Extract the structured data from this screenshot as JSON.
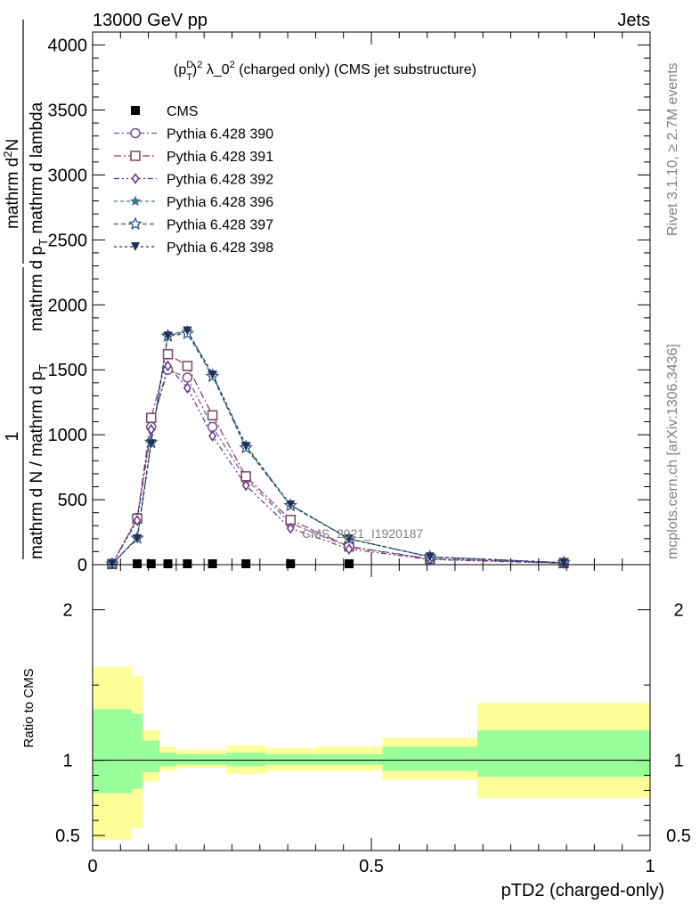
{
  "header": {
    "left": "13000 GeV pp",
    "right": "Jets"
  },
  "side_labels": {
    "rivet": "Rivet 3.1.10, ≥ 2.7M events",
    "mcplots": "mcplots.cern.ch [arXiv:1306.3436]"
  },
  "watermark": "CMS_2021_I1920187",
  "colors": {
    "yellow_band": "#ffff99",
    "green_band": "#99ff99",
    "data": "#000000",
    "p390": "#7a4e84",
    "p391": "#7a4260",
    "p392": "#5a3384",
    "p396": "#3e7a86",
    "p397": "#305a84",
    "p398": "#22305a"
  },
  "chart_data": [
    {
      "type": "line",
      "title": "(p_T^D)^2 λ_0^2 (charged only) (CMS jet substructure)",
      "title_parts": {
        "main": "(p",
        "sup1": "D",
        "sub1": "T",
        "close": ")",
        "sup2": "2",
        "lambda": " λ_0",
        "sup3": "2",
        "rest": " (charged only) (CMS jet substructure)"
      },
      "ylabel_parts": {
        "num": "mathrm d",
        "num_sup": "2",
        "num_n": "N",
        "den_a": "mathrm d p",
        "den_sub": "T",
        "den_b": " mathrm d lambda",
        "lhs_top": "1",
        "lhs_bottom": "mathrm d N / mathrm d p",
        "lhs_sub": "T"
      },
      "xlim": [
        0,
        1
      ],
      "ylim": [
        0,
        4100
      ],
      "yticks": [
        0,
        500,
        1000,
        1500,
        2000,
        2500,
        3000,
        3500,
        4000
      ],
      "ytick_labels": [
        "0",
        "500",
        "1000",
        "1500",
        "2000",
        "2500",
        "3000",
        "3500",
        "4000"
      ],
      "legend_position": "top-left",
      "series": [
        {
          "name": "CMS",
          "marker": "square",
          "x": [
            0.035,
            0.08,
            0.105,
            0.135,
            0.17,
            0.215,
            0.275,
            0.355,
            0.46
          ],
          "y": [
            2,
            2,
            2,
            2,
            2,
            2,
            2,
            2,
            2
          ]
        },
        {
          "name": "Pythia 6.428 390",
          "marker": "circle",
          "x": [
            0.035,
            0.08,
            0.105,
            0.135,
            0.17,
            0.215,
            0.275,
            0.355,
            0.46,
            0.605,
            0.845
          ],
          "y": [
            5,
            360,
            1060,
            1500,
            1440,
            1060,
            660,
            320,
            135,
            45,
            12
          ]
        },
        {
          "name": "Pythia 6.428 391",
          "marker": "square-open",
          "x": [
            0.035,
            0.08,
            0.105,
            0.135,
            0.17,
            0.215,
            0.275,
            0.355,
            0.46,
            0.605,
            0.845
          ],
          "y": [
            5,
            355,
            1130,
            1620,
            1530,
            1150,
            680,
            345,
            140,
            45,
            12
          ]
        },
        {
          "name": "Pythia 6.428 392",
          "marker": "diamond-open",
          "x": [
            0.035,
            0.08,
            0.105,
            0.135,
            0.17,
            0.215,
            0.275,
            0.355,
            0.46,
            0.605,
            0.845
          ],
          "y": [
            5,
            340,
            1040,
            1530,
            1360,
            990,
            610,
            280,
            120,
            40,
            10
          ]
        },
        {
          "name": "Pythia 6.428 396",
          "marker": "star",
          "x": [
            0.035,
            0.08,
            0.105,
            0.135,
            0.17,
            0.215,
            0.275,
            0.355,
            0.46,
            0.605,
            0.845
          ],
          "y": [
            5,
            210,
            950,
            1770,
            1800,
            1470,
            920,
            460,
            200,
            60,
            15
          ]
        },
        {
          "name": "Pythia 6.428 397",
          "marker": "star-open",
          "x": [
            0.035,
            0.08,
            0.105,
            0.135,
            0.17,
            0.215,
            0.275,
            0.355,
            0.46,
            0.605,
            0.845
          ],
          "y": [
            5,
            205,
            940,
            1760,
            1780,
            1450,
            900,
            455,
            198,
            60,
            15
          ]
        },
        {
          "name": "Pythia 6.428 398",
          "marker": "triangle-down",
          "x": [
            0.035,
            0.08,
            0.105,
            0.135,
            0.17,
            0.215,
            0.275,
            0.355,
            0.46,
            0.605,
            0.845
          ],
          "y": [
            5,
            200,
            930,
            1760,
            1800,
            1460,
            910,
            460,
            198,
            60,
            15
          ]
        }
      ]
    },
    {
      "type": "area",
      "ylabel": "Ratio to CMS",
      "xlabel": "pTD2 (charged-only)",
      "xlim": [
        0,
        1
      ],
      "ylim": [
        0.4,
        2.3
      ],
      "xticks": [
        0,
        0.5,
        1
      ],
      "xtick_labels": [
        "0",
        "0.5",
        "1"
      ],
      "yticks": [
        0.5,
        1,
        2
      ],
      "ytick_labels": [
        "0.5",
        "1",
        "2"
      ],
      "reference_line": 1,
      "bins": [
        {
          "x0": 0.0,
          "x1": 0.07,
          "green": [
            0.78,
            1.34
          ],
          "yellow": [
            0.47,
            1.62
          ]
        },
        {
          "x0": 0.07,
          "x1": 0.09,
          "green": [
            0.81,
            1.31
          ],
          "yellow": [
            0.55,
            1.56
          ]
        },
        {
          "x0": 0.09,
          "x1": 0.12,
          "green": [
            0.92,
            1.13
          ],
          "yellow": [
            0.86,
            1.2
          ]
        },
        {
          "x0": 0.12,
          "x1": 0.15,
          "green": [
            0.96,
            1.05
          ],
          "yellow": [
            0.93,
            1.09
          ]
        },
        {
          "x0": 0.15,
          "x1": 0.19,
          "green": [
            0.97,
            1.04
          ],
          "yellow": [
            0.95,
            1.07
          ]
        },
        {
          "x0": 0.19,
          "x1": 0.24,
          "green": [
            0.97,
            1.04
          ],
          "yellow": [
            0.95,
            1.07
          ]
        },
        {
          "x0": 0.24,
          "x1": 0.31,
          "green": [
            0.96,
            1.05
          ],
          "yellow": [
            0.91,
            1.1
          ]
        },
        {
          "x0": 0.31,
          "x1": 0.4,
          "green": [
            0.97,
            1.04
          ],
          "yellow": [
            0.93,
            1.08
          ]
        },
        {
          "x0": 0.4,
          "x1": 0.52,
          "green": [
            0.97,
            1.04
          ],
          "yellow": [
            0.93,
            1.09
          ]
        },
        {
          "x0": 0.52,
          "x1": 0.69,
          "green": [
            0.93,
            1.09
          ],
          "yellow": [
            0.87,
            1.15
          ]
        },
        {
          "x0": 0.69,
          "x1": 1.0,
          "green": [
            0.89,
            1.2
          ],
          "yellow": [
            0.75,
            1.38
          ]
        }
      ]
    }
  ]
}
